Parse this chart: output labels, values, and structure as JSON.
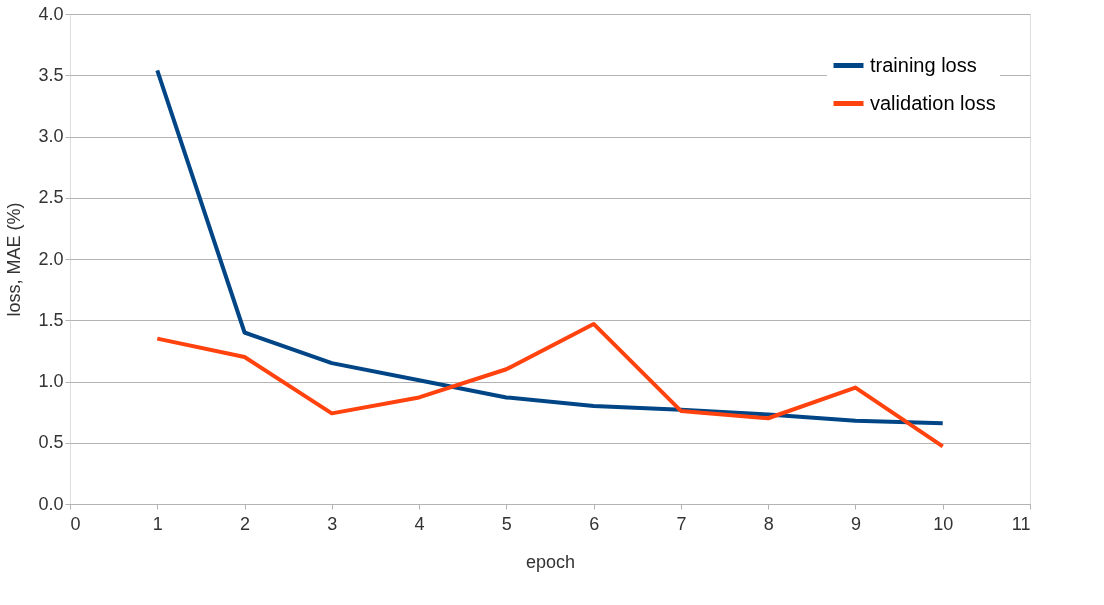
{
  "chart_data": {
    "type": "line",
    "xlabel": "epoch",
    "ylabel": "loss, MAE (%)",
    "x": [
      1,
      2,
      3,
      4,
      5,
      6,
      7,
      8,
      9,
      10
    ],
    "series": [
      {
        "name": "training loss",
        "color": "#004586",
        "values": [
          3.54,
          1.4,
          1.15,
          1.01,
          0.87,
          0.8,
          0.77,
          0.73,
          0.68,
          0.66
        ]
      },
      {
        "name": "validation loss",
        "color": "#ff420e",
        "values": [
          1.35,
          1.2,
          0.74,
          0.87,
          1.1,
          1.47,
          0.76,
          0.7,
          0.95,
          0.47
        ]
      }
    ],
    "xlim": [
      0,
      11
    ],
    "xticks": [
      0,
      1,
      2,
      3,
      4,
      5,
      6,
      7,
      8,
      9,
      10,
      11
    ],
    "ylim": [
      0,
      4
    ],
    "yticks": [
      {
        "value": 0,
        "label": "0.0"
      },
      {
        "value": 0.5,
        "label": "0.5"
      },
      {
        "value": 1,
        "label": "1.0"
      },
      {
        "value": 1.5,
        "label": "1.5"
      },
      {
        "value": 2,
        "label": "2.0"
      },
      {
        "value": 2.5,
        "label": "2.5"
      },
      {
        "value": 3,
        "label": "3.0"
      },
      {
        "value": 3.5,
        "label": "3.5"
      },
      {
        "value": 4,
        "label": "4.0"
      }
    ],
    "grid": "y",
    "legend": "top right",
    "marker": "none",
    "line_style": "solid"
  }
}
